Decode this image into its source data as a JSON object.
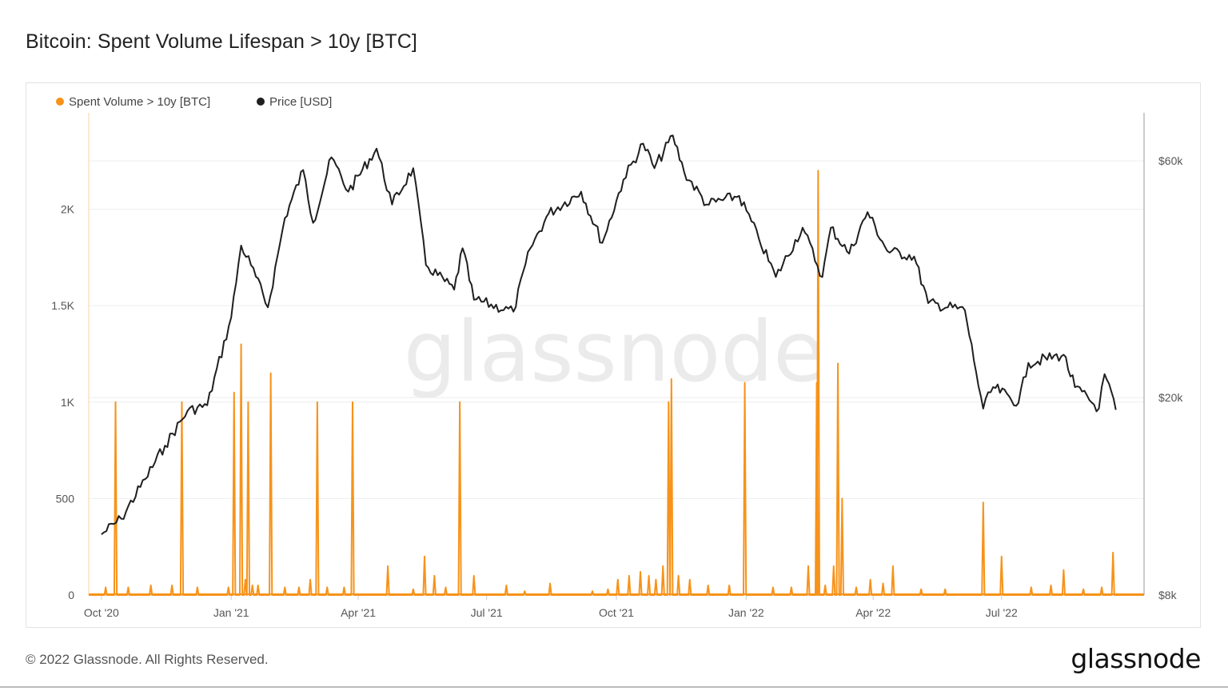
{
  "title": "Bitcoin: Spent Volume Lifespan > 10y [BTC]",
  "watermark": "glassnode",
  "footer": {
    "copyright": "© 2022 Glassnode. All Rights Reserved.",
    "logo": "glassnode"
  },
  "colors": {
    "volume": "#f7931a",
    "price": "#1f1f1f",
    "grid": "#eeeeee"
  },
  "chart_data": {
    "type": "line",
    "legend": [
      {
        "name": "Spent Volume > 10y [BTC]",
        "color": "#f7931a"
      },
      {
        "name": "Price [USD]",
        "color": "#1f1f1f"
      }
    ],
    "legend_position": "top-left",
    "x_ticks": [
      "Oct '20",
      "Jan '21",
      "Apr '21",
      "Jul '21",
      "Oct '21",
      "Jan '22",
      "Apr '22",
      "Jul '22"
    ],
    "y_left": {
      "ticks": [
        "0",
        "500",
        "1K",
        "1.5K",
        "2K"
      ],
      "values": [
        0,
        500,
        1000,
        1500,
        2000
      ],
      "ylim": [
        0,
        2500
      ]
    },
    "y_right": {
      "ticks": [
        "$8k",
        "$20k",
        "$60k"
      ],
      "values": [
        8000,
        20000,
        60000
      ],
      "scale": "log"
    },
    "grid": true,
    "volume_spikes": [
      {
        "date": "2020-10-04",
        "value": 40
      },
      {
        "date": "2020-10-11",
        "value": 1000
      },
      {
        "date": "2020-10-20",
        "value": 40
      },
      {
        "date": "2020-11-05",
        "value": 50
      },
      {
        "date": "2020-11-20",
        "value": 50
      },
      {
        "date": "2020-11-27",
        "value": 1000
      },
      {
        "date": "2020-12-08",
        "value": 40
      },
      {
        "date": "2020-12-30",
        "value": 40
      },
      {
        "date": "2021-01-03",
        "value": 1050
      },
      {
        "date": "2021-01-08",
        "value": 1300
      },
      {
        "date": "2021-01-11",
        "value": 80
      },
      {
        "date": "2021-01-13",
        "value": 1000
      },
      {
        "date": "2021-01-16",
        "value": 50
      },
      {
        "date": "2021-01-20",
        "value": 50
      },
      {
        "date": "2021-01-29",
        "value": 1150
      },
      {
        "date": "2021-02-08",
        "value": 40
      },
      {
        "date": "2021-02-18",
        "value": 40
      },
      {
        "date": "2021-02-26",
        "value": 80
      },
      {
        "date": "2021-03-03",
        "value": 1000
      },
      {
        "date": "2021-03-10",
        "value": 40
      },
      {
        "date": "2021-03-22",
        "value": 40
      },
      {
        "date": "2021-03-28",
        "value": 1000
      },
      {
        "date": "2021-04-22",
        "value": 150
      },
      {
        "date": "2021-05-10",
        "value": 30
      },
      {
        "date": "2021-05-18",
        "value": 200
      },
      {
        "date": "2021-05-25",
        "value": 100
      },
      {
        "date": "2021-06-02",
        "value": 40
      },
      {
        "date": "2021-06-12",
        "value": 1000
      },
      {
        "date": "2021-06-22",
        "value": 100
      },
      {
        "date": "2021-07-15",
        "value": 50
      },
      {
        "date": "2021-07-28",
        "value": 20
      },
      {
        "date": "2021-08-15",
        "value": 60
      },
      {
        "date": "2021-09-14",
        "value": 20
      },
      {
        "date": "2021-09-25",
        "value": 30
      },
      {
        "date": "2021-10-02",
        "value": 80
      },
      {
        "date": "2021-10-10",
        "value": 100
      },
      {
        "date": "2021-10-18",
        "value": 120
      },
      {
        "date": "2021-10-24",
        "value": 100
      },
      {
        "date": "2021-10-29",
        "value": 80
      },
      {
        "date": "2021-11-03",
        "value": 150
      },
      {
        "date": "2021-11-07",
        "value": 1000
      },
      {
        "date": "2021-11-09",
        "value": 1120
      },
      {
        "date": "2021-11-14",
        "value": 100
      },
      {
        "date": "2021-11-22",
        "value": 80
      },
      {
        "date": "2021-12-05",
        "value": 50
      },
      {
        "date": "2021-12-20",
        "value": 50
      },
      {
        "date": "2021-12-31",
        "value": 1100
      },
      {
        "date": "2022-01-20",
        "value": 40
      },
      {
        "date": "2022-02-02",
        "value": 40
      },
      {
        "date": "2022-02-14",
        "value": 150
      },
      {
        "date": "2022-02-20",
        "value": 1100
      },
      {
        "date": "2022-02-26",
        "value": 50
      },
      {
        "date": "2022-03-04",
        "value": 150
      },
      {
        "date": "2022-03-07",
        "value": 1200
      },
      {
        "date": "2022-03-10",
        "value": 500
      },
      {
        "date": "2022-03-20",
        "value": 40
      },
      {
        "date": "2022-03-30",
        "value": 80
      },
      {
        "date": "2022-04-08",
        "value": 60
      },
      {
        "date": "2022-04-15",
        "value": 150
      },
      {
        "date": "2022-05-05",
        "value": 30
      },
      {
        "date": "2022-05-22",
        "value": 30
      },
      {
        "date": "2022-06-18",
        "value": 480
      },
      {
        "date": "2022-07-01",
        "value": 200
      },
      {
        "date": "2022-07-22",
        "value": 40
      },
      {
        "date": "2022-08-05",
        "value": 50
      },
      {
        "date": "2022-08-14",
        "value": 130
      },
      {
        "date": "2022-08-28",
        "value": 30
      },
      {
        "date": "2022-09-10",
        "value": 40
      },
      {
        "date": "2022-09-18",
        "value": 220
      }
    ],
    "volume_peak": {
      "date": "2022-02-21",
      "value": 2200
    },
    "price_series": [
      {
        "date": "2020-10-01",
        "value": 10600
      },
      {
        "date": "2020-10-15",
        "value": 11400
      },
      {
        "date": "2020-11-01",
        "value": 13700
      },
      {
        "date": "2020-11-15",
        "value": 16000
      },
      {
        "date": "2020-12-01",
        "value": 18800
      },
      {
        "date": "2020-12-15",
        "value": 19300
      },
      {
        "date": "2021-01-01",
        "value": 29000
      },
      {
        "date": "2021-01-08",
        "value": 40500
      },
      {
        "date": "2021-01-15",
        "value": 37000
      },
      {
        "date": "2021-01-27",
        "value": 30400
      },
      {
        "date": "2021-02-08",
        "value": 46000
      },
      {
        "date": "2021-02-21",
        "value": 57500
      },
      {
        "date": "2021-02-28",
        "value": 45000
      },
      {
        "date": "2021-03-13",
        "value": 61000
      },
      {
        "date": "2021-03-25",
        "value": 52000
      },
      {
        "date": "2021-04-14",
        "value": 63500
      },
      {
        "date": "2021-04-25",
        "value": 49000
      },
      {
        "date": "2021-05-10",
        "value": 58000
      },
      {
        "date": "2021-05-19",
        "value": 37000
      },
      {
        "date": "2021-06-08",
        "value": 33000
      },
      {
        "date": "2021-06-14",
        "value": 40000
      },
      {
        "date": "2021-06-22",
        "value": 31500
      },
      {
        "date": "2021-07-20",
        "value": 29800
      },
      {
        "date": "2021-08-01",
        "value": 40000
      },
      {
        "date": "2021-08-14",
        "value": 47000
      },
      {
        "date": "2021-09-06",
        "value": 52000
      },
      {
        "date": "2021-09-21",
        "value": 41000
      },
      {
        "date": "2021-10-06",
        "value": 55000
      },
      {
        "date": "2021-10-20",
        "value": 65000
      },
      {
        "date": "2021-10-28",
        "value": 58000
      },
      {
        "date": "2021-11-10",
        "value": 67500
      },
      {
        "date": "2021-11-18",
        "value": 57000
      },
      {
        "date": "2021-12-04",
        "value": 49000
      },
      {
        "date": "2021-12-27",
        "value": 51000
      },
      {
        "date": "2022-01-10",
        "value": 41800
      },
      {
        "date": "2022-01-22",
        "value": 35000
      },
      {
        "date": "2022-02-10",
        "value": 44000
      },
      {
        "date": "2022-02-24",
        "value": 35000
      },
      {
        "date": "2022-03-02",
        "value": 44000
      },
      {
        "date": "2022-03-15",
        "value": 39000
      },
      {
        "date": "2022-03-28",
        "value": 47300
      },
      {
        "date": "2022-04-11",
        "value": 39500
      },
      {
        "date": "2022-04-30",
        "value": 38500
      },
      {
        "date": "2022-05-10",
        "value": 31000
      },
      {
        "date": "2022-06-05",
        "value": 30000
      },
      {
        "date": "2022-06-13",
        "value": 22500
      },
      {
        "date": "2022-06-18",
        "value": 19000
      },
      {
        "date": "2022-06-25",
        "value": 21000
      },
      {
        "date": "2022-07-13",
        "value": 19500
      },
      {
        "date": "2022-07-20",
        "value": 23500
      },
      {
        "date": "2022-08-14",
        "value": 24400
      },
      {
        "date": "2022-08-22",
        "value": 21000
      },
      {
        "date": "2022-09-08",
        "value": 19000
      },
      {
        "date": "2022-09-12",
        "value": 22300
      },
      {
        "date": "2022-09-20",
        "value": 18900
      }
    ]
  }
}
